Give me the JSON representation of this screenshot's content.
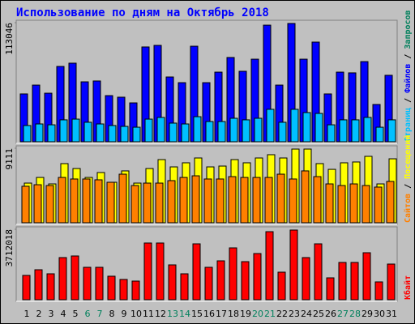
{
  "title": "Использование по дням на Октябрь 2018",
  "legend_separator": " / ",
  "chart_data": [
    {
      "type": "bar",
      "ylim": [
        0,
        113046
      ],
      "yticks": [
        113046
      ],
      "legend": [
        {
          "label": "Страниц",
          "color": "#00c0ff"
        },
        {
          "label": "Файлов",
          "color": "#0000ff"
        },
        {
          "label": "Запросов",
          "color": "#00805c"
        }
      ],
      "series": [
        {
          "color": "#0000ff",
          "values": [
            45400,
            53800,
            46100,
            71500,
            74600,
            56900,
            57700,
            43800,
            42300,
            36900,
            90000,
            91500,
            61500,
            56100,
            90700,
            56100,
            66100,
            80000,
            66900,
            78400,
            110700,
            53800,
            112300,
            78400,
            94600,
            45400,
            66100,
            65400,
            76100,
            35400,
            63100
          ]
        },
        {
          "color": "#00c0ff",
          "values": [
            15400,
            16900,
            16100,
            20800,
            21500,
            18500,
            16900,
            15400,
            14600,
            13800,
            21500,
            23100,
            17700,
            16900,
            23800,
            19200,
            19200,
            22300,
            20800,
            22300,
            30800,
            18500,
            30800,
            27700,
            26900,
            16100,
            20800,
            20800,
            23100,
            13800,
            20800
          ]
        }
      ]
    },
    {
      "type": "bar",
      "ylim": [
        0,
        9111
      ],
      "yticks": [
        9111
      ],
      "legend": [
        {
          "label": "Сайтов",
          "color": "#ff8000"
        },
        {
          "label": "Посещений",
          "color": "#ffff00"
        }
      ],
      "series": [
        {
          "color": "#ffff00",
          "values": [
            4850,
            5540,
            4750,
            7230,
            6630,
            5540,
            6140,
            4950,
            6340,
            4850,
            6630,
            7720,
            6830,
            7330,
            7920,
            6830,
            6930,
            7720,
            7330,
            7920,
            8320,
            7920,
            9010,
            9010,
            7230,
            6530,
            7330,
            7430,
            8120,
            4750,
            7820
          ]
        },
        {
          "color": "#ff8000",
          "values": [
            4460,
            4650,
            4550,
            5540,
            5350,
            5350,
            5250,
            4950,
            5940,
            4550,
            4850,
            4850,
            5150,
            5540,
            5740,
            5350,
            5350,
            5640,
            5540,
            5540,
            5540,
            5940,
            5350,
            6340,
            5640,
            4750,
            4550,
            4750,
            4550,
            4360,
            5050
          ]
        }
      ]
    },
    {
      "type": "bar",
      "ylim": [
        0,
        3712018
      ],
      "yticks": [
        3712018
      ],
      "legend": [
        {
          "label": "Кбайт",
          "color": "#ff0000"
        }
      ],
      "categories": [
        "1",
        "2",
        "3",
        "4",
        "5",
        "6",
        "7",
        "8",
        "9",
        "10",
        "11",
        "12",
        "13",
        "14",
        "15",
        "16",
        "17",
        "18",
        "19",
        "20",
        "21",
        "22",
        "23",
        "24",
        "25",
        "26",
        "27",
        "28",
        "29",
        "30",
        "31"
      ],
      "weekend_categories": [
        "6",
        "7",
        "13",
        "14",
        "20",
        "21",
        "27",
        "28"
      ],
      "weekend_color": "#00805c",
      "series": [
        {
          "color": "#ff0000",
          "values": [
            1280000,
            1578700,
            1365300,
            2218700,
            2304000,
            1706700,
            1706700,
            1237300,
            1066700,
            981300,
            2986700,
            2986700,
            1834700,
            1365300,
            2944000,
            1706700,
            2048000,
            2730700,
            2005300,
            2432000,
            3584000,
            1450700,
            3669300,
            2218700,
            2944000,
            1152000,
            1962700,
            1962700,
            2474700,
            938700,
            1877300
          ]
        }
      ]
    }
  ]
}
